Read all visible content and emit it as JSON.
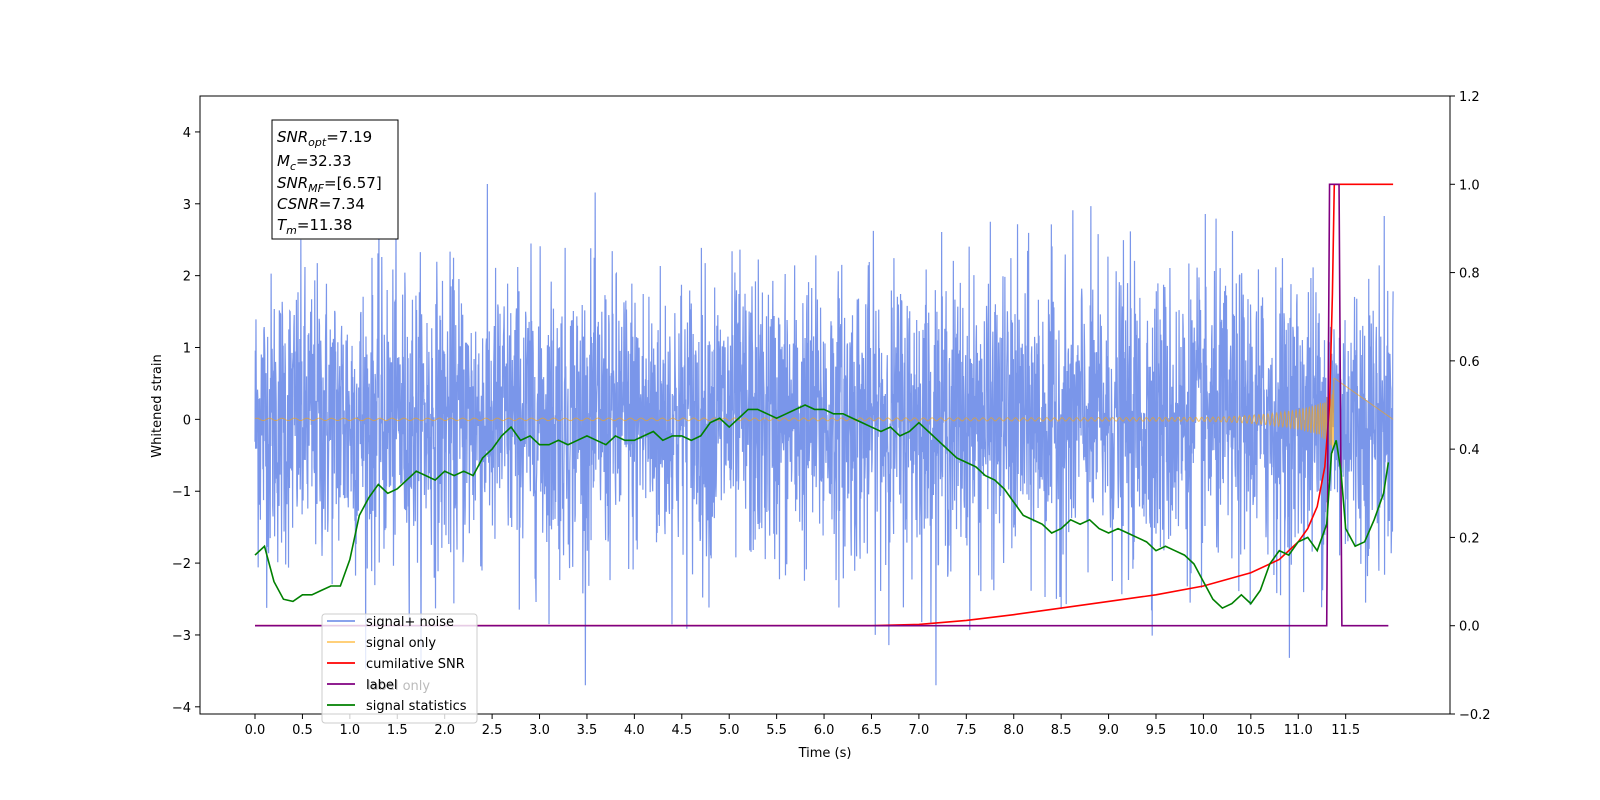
{
  "chart_data": {
    "type": "line",
    "title": "",
    "xlabel": "Time (s)",
    "ylabel": "Whitened strain",
    "y2label": "",
    "xlim": [
      -0.58,
      12.6
    ],
    "ylim": [
      -4.1,
      4.5
    ],
    "y2lim": [
      -0.2,
      1.2
    ],
    "x_ticks": [
      "0.0",
      "0.5",
      "1.0",
      "1.5",
      "2.0",
      "2.5",
      "3.0",
      "3.5",
      "4.0",
      "4.5",
      "5.0",
      "5.5",
      "6.0",
      "6.5",
      "7.0",
      "7.5",
      "8.0",
      "8.5",
      "9.0",
      "9.5",
      "10.0",
      "10.5",
      "11.0",
      "11.5"
    ],
    "y_ticks": [
      "4",
      "3",
      "2",
      "1",
      "0",
      "−1",
      "−2",
      "−3",
      "−4"
    ],
    "y2_ticks": [
      "1.2",
      "1.0",
      "0.8",
      "0.6",
      "0.4",
      "0.2",
      "0.0",
      "−0.2"
    ],
    "grid": false,
    "legend_position": "lower-left",
    "series": [
      {
        "name": "signal+ noise",
        "axis": "left",
        "color": "#4169e1",
        "style": "noise",
        "x_range": [
          0.0,
          12.0
        ],
        "mean": 0.0,
        "std": 1.0
      },
      {
        "name": "signal only",
        "axis": "left",
        "color": "#ffa500",
        "style": "chirp",
        "x_range": [
          0.0,
          11.38
        ],
        "merger_time": 11.38
      },
      {
        "name": "cumilative SNR",
        "axis": "right",
        "color": "#ff0000",
        "x": [
          0.0,
          6.5,
          7.0,
          7.5,
          8.0,
          8.5,
          9.0,
          9.5,
          10.0,
          10.5,
          10.8,
          11.0,
          11.1,
          11.2,
          11.28,
          11.33,
          11.36,
          11.38,
          12.0
        ],
        "values": [
          0.0,
          0.0,
          0.003,
          0.012,
          0.025,
          0.04,
          0.055,
          0.07,
          0.09,
          0.12,
          0.15,
          0.19,
          0.22,
          0.27,
          0.36,
          0.5,
          0.75,
          1.0,
          1.0
        ]
      },
      {
        "name": "label",
        "axis": "right",
        "color": "#800080",
        "x": [
          0.0,
          11.3,
          11.33,
          11.43,
          11.46,
          11.95
        ],
        "values": [
          0.0,
          0.0,
          1.0,
          1.0,
          0.0,
          0.0
        ]
      },
      {
        "name": "signal statistics",
        "axis": "right",
        "color": "#008000",
        "x": [
          0.0,
          0.1,
          0.2,
          0.3,
          0.4,
          0.5,
          0.6,
          0.7,
          0.8,
          0.9,
          1.0,
          1.1,
          1.2,
          1.3,
          1.4,
          1.5,
          1.6,
          1.7,
          1.8,
          1.9,
          2.0,
          2.1,
          2.2,
          2.3,
          2.4,
          2.5,
          2.6,
          2.7,
          2.8,
          2.9,
          3.0,
          3.1,
          3.2,
          3.3,
          3.4,
          3.5,
          3.6,
          3.7,
          3.8,
          3.9,
          4.0,
          4.1,
          4.2,
          4.3,
          4.4,
          4.5,
          4.6,
          4.7,
          4.8,
          4.9,
          5.0,
          5.1,
          5.2,
          5.3,
          5.4,
          5.5,
          5.6,
          5.7,
          5.8,
          5.9,
          6.0,
          6.1,
          6.2,
          6.3,
          6.4,
          6.5,
          6.6,
          6.7,
          6.8,
          6.9,
          7.0,
          7.1,
          7.2,
          7.3,
          7.4,
          7.5,
          7.6,
          7.7,
          7.8,
          7.9,
          8.0,
          8.1,
          8.2,
          8.3,
          8.4,
          8.5,
          8.6,
          8.7,
          8.8,
          8.9,
          9.0,
          9.1,
          9.2,
          9.3,
          9.4,
          9.5,
          9.6,
          9.7,
          9.8,
          9.9,
          10.0,
          10.1,
          10.2,
          10.3,
          10.4,
          10.5,
          10.6,
          10.7,
          10.8,
          10.9,
          11.0,
          11.1,
          11.2,
          11.3,
          11.35,
          11.4,
          11.45,
          11.5,
          11.6,
          11.7,
          11.8,
          11.9,
          11.95
        ],
        "values": [
          0.16,
          0.18,
          0.1,
          0.06,
          0.055,
          0.07,
          0.07,
          0.08,
          0.09,
          0.09,
          0.15,
          0.25,
          0.29,
          0.32,
          0.3,
          0.31,
          0.33,
          0.35,
          0.34,
          0.33,
          0.35,
          0.34,
          0.35,
          0.34,
          0.38,
          0.4,
          0.43,
          0.45,
          0.42,
          0.43,
          0.41,
          0.41,
          0.42,
          0.41,
          0.42,
          0.43,
          0.42,
          0.41,
          0.43,
          0.42,
          0.42,
          0.43,
          0.44,
          0.42,
          0.43,
          0.43,
          0.42,
          0.43,
          0.46,
          0.47,
          0.45,
          0.47,
          0.49,
          0.49,
          0.48,
          0.47,
          0.48,
          0.49,
          0.5,
          0.49,
          0.49,
          0.48,
          0.48,
          0.47,
          0.46,
          0.45,
          0.44,
          0.45,
          0.43,
          0.44,
          0.46,
          0.44,
          0.42,
          0.4,
          0.38,
          0.37,
          0.36,
          0.34,
          0.33,
          0.31,
          0.28,
          0.25,
          0.24,
          0.23,
          0.21,
          0.22,
          0.24,
          0.23,
          0.24,
          0.22,
          0.21,
          0.22,
          0.21,
          0.2,
          0.19,
          0.17,
          0.18,
          0.17,
          0.16,
          0.14,
          0.1,
          0.06,
          0.04,
          0.05,
          0.07,
          0.05,
          0.08,
          0.14,
          0.17,
          0.16,
          0.19,
          0.2,
          0.17,
          0.23,
          0.39,
          0.42,
          0.35,
          0.22,
          0.18,
          0.19,
          0.24,
          0.3,
          0.37
        ]
      }
    ],
    "stats_box": {
      "snr_opt": {
        "symbol": "SNR",
        "sub": "opt",
        "value": "=7.19"
      },
      "mc": {
        "symbol": "M",
        "sub": "c",
        "value": "=32.33"
      },
      "snr_mf": {
        "symbol": "SNR",
        "sub": "MF",
        "value": "=[6.57]"
      },
      "csnr": {
        "symbol": "CSNR",
        "sub": "",
        "value": "=7.34"
      },
      "tm": {
        "symbol": "T",
        "sub": "m",
        "value": "=11.38"
      }
    },
    "legend": {
      "items": [
        {
          "label": "signal+ noise",
          "color": "#4169e1",
          "alpha": 0.7
        },
        {
          "label": "signal only",
          "color": "#ffa500",
          "alpha": 0.6
        },
        {
          "label": "cumilative SNR",
          "color": "#ff0000",
          "alpha": 1
        },
        {
          "label": "label",
          "color": "#800080",
          "alpha": 1
        },
        {
          "label": "signal statistics",
          "color": "#008000",
          "alpha": 1
        }
      ],
      "ghost_text": "label only"
    }
  }
}
